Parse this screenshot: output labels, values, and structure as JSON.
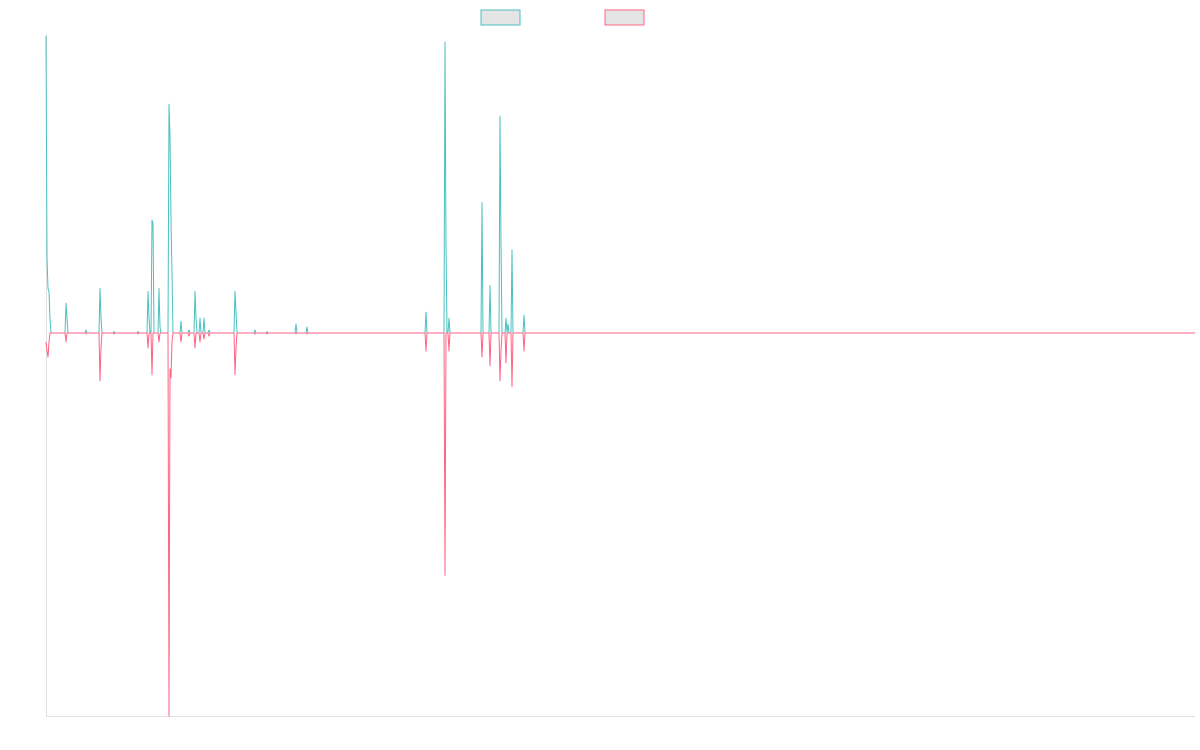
{
  "chart_data": {
    "type": "line",
    "title": "",
    "xlabel": "",
    "ylabel": "",
    "grid": false,
    "legend": "top-center",
    "x": [
      0,
      1,
      2,
      3,
      4,
      5,
      6,
      7,
      8,
      9,
      10,
      11,
      12,
      13,
      14,
      15,
      16,
      17,
      18,
      19,
      20,
      21,
      22,
      23,
      24,
      25,
      26,
      27,
      28,
      29,
      30,
      31,
      32,
      33,
      34,
      35,
      36,
      37,
      38,
      39,
      40,
      41,
      42,
      43,
      44,
      45,
      46,
      47,
      48,
      49,
      50,
      51,
      52,
      53,
      54,
      55,
      56,
      57,
      58,
      59,
      60,
      61,
      62,
      63,
      64,
      65,
      66,
      67,
      68,
      69,
      70,
      71,
      72,
      73,
      74,
      75,
      76,
      77,
      78,
      79,
      80,
      81,
      82,
      83,
      84,
      85,
      86,
      87,
      88,
      89,
      90,
      91,
      92,
      93,
      94,
      95,
      96,
      97,
      98,
      99,
      100,
      101,
      102,
      103,
      104,
      105,
      106,
      107,
      108,
      109,
      110,
      111,
      112,
      113,
      114,
      115,
      116,
      117,
      118,
      119,
      120,
      121,
      122,
      123,
      124,
      125,
      126,
      127,
      128,
      129,
      130,
      131,
      132,
      133,
      134,
      135,
      136,
      137,
      138,
      139,
      140,
      141,
      142,
      143,
      144,
      145,
      146,
      147,
      148,
      149,
      150,
      151,
      152,
      153,
      154,
      155,
      156,
      157,
      158,
      159,
      160,
      161,
      162,
      163,
      164,
      165,
      166,
      167,
      168,
      169,
      170,
      171,
      172,
      173,
      174,
      175,
      176,
      177,
      178,
      179,
      180,
      181,
      182,
      183,
      184,
      185,
      186,
      187,
      188,
      189,
      190,
      191,
      192,
      193,
      194,
      195,
      196,
      197,
      198,
      199,
      200,
      201,
      202,
      203,
      204,
      205,
      206,
      207,
      208,
      209,
      210,
      211,
      212,
      213,
      214,
      215,
      216,
      217,
      218,
      219,
      220,
      221,
      222,
      223,
      224,
      225,
      226,
      227,
      228,
      229,
      230,
      231,
      232,
      233,
      234,
      235,
      236,
      237,
      238,
      239,
      240,
      241,
      242,
      243,
      244,
      245,
      246,
      247,
      248,
      249,
      250,
      251,
      252,
      253,
      254,
      255,
      256,
      257,
      258,
      259,
      260,
      261,
      262,
      263,
      264,
      265,
      266,
      267,
      268,
      269,
      270,
      271,
      272,
      273,
      274,
      275,
      276,
      277,
      278,
      279,
      280,
      281,
      282,
      283,
      284,
      285,
      286,
      287,
      288,
      289,
      290,
      291,
      292,
      293,
      294,
      295,
      296,
      297,
      298,
      299,
      300,
      301,
      302,
      303,
      304,
      305,
      306,
      307,
      308,
      309,
      310,
      311,
      312,
      313,
      314,
      315,
      316,
      317,
      318,
      319,
      320,
      321,
      322,
      323,
      324,
      325,
      326,
      327,
      328,
      329,
      330,
      331,
      332,
      333,
      334,
      335,
      336,
      337,
      338,
      339,
      340,
      341,
      342,
      343,
      344,
      345,
      346,
      347,
      348,
      349,
      350,
      351,
      352,
      353,
      354,
      355,
      356,
      357,
      358,
      359,
      360,
      361,
      362,
      363,
      364,
      365,
      366,
      367,
      368,
      369,
      370,
      371,
      372,
      373,
      374,
      375,
      376,
      377,
      378,
      379,
      380,
      381,
      382,
      383,
      384,
      385,
      386,
      387,
      388,
      389,
      390,
      391,
      392,
      393,
      394,
      395,
      396,
      397,
      398,
      399,
      400,
      401,
      402,
      403,
      404,
      405,
      406,
      407,
      408,
      409,
      410,
      411,
      412,
      413,
      414,
      415,
      416,
      417,
      418,
      419,
      420,
      421,
      422,
      423,
      424,
      425,
      426,
      427,
      428,
      429,
      430,
      431,
      432,
      433,
      434,
      435,
      436,
      437,
      438,
      439,
      440,
      441,
      442,
      443,
      444,
      445,
      446,
      447,
      448,
      449,
      450,
      451,
      452,
      453,
      454,
      455,
      456,
      457,
      458,
      459,
      460,
      461,
      462,
      463,
      464,
      465,
      466,
      467,
      468,
      469,
      470,
      471,
      472,
      473,
      474,
      475,
      476,
      477,
      478,
      479,
      480,
      481,
      482,
      483,
      484,
      485,
      486,
      487,
      488,
      489,
      490,
      491,
      492,
      493,
      494,
      495,
      496,
      497,
      498,
      499,
      500,
      501,
      502,
      503,
      504,
      505,
      506,
      507,
      508,
      509,
      510,
      511,
      512,
      513,
      514,
      515,
      516,
      517,
      518,
      519,
      520,
      521,
      522,
      523,
      524,
      525,
      526,
      527,
      528,
      529,
      530,
      531,
      532,
      533,
      534,
      535,
      536,
      537,
      538,
      539,
      540,
      541,
      542,
      543,
      544,
      545,
      546,
      547,
      548,
      549,
      550,
      551,
      552,
      553,
      554,
      555,
      556,
      557,
      558,
      559,
      560,
      561,
      562,
      563,
      564,
      565,
      566,
      567,
      568,
      569,
      570,
      571,
      572,
      573,
      574,
      575,
      576,
      577,
      578,
      579,
      580,
      581,
      582,
      583,
      584,
      585,
      586,
      587,
      588,
      589,
      590,
      591,
      592,
      593,
      594,
      595,
      596,
      597,
      598,
      599,
      600,
      601,
      602,
      603,
      604,
      605,
      606,
      607,
      608,
      609,
      610,
      611,
      612,
      613,
      614,
      615,
      616,
      617,
      618,
      619,
      620,
      621,
      622,
      623,
      624,
      625,
      626,
      627,
      628,
      629,
      630,
      631,
      632,
      633,
      634,
      635,
      636,
      637,
      638,
      639,
      640,
      641,
      642,
      643,
      644,
      645,
      646,
      647,
      648,
      649,
      650,
      651,
      652,
      653,
      654,
      655,
      656,
      657,
      658,
      659,
      660,
      661,
      662,
      663,
      664,
      665,
      666,
      667,
      668,
      669,
      670,
      671,
      672,
      673,
      674,
      675,
      676,
      677,
      678,
      679,
      680,
      681,
      682,
      683,
      684,
      685,
      686,
      687,
      688,
      689,
      690,
      691,
      692,
      693,
      694,
      695,
      696,
      697,
      698,
      699,
      700,
      701,
      702,
      703,
      704,
      705,
      706,
      707,
      708,
      709,
      710,
      711,
      712,
      713,
      714,
      715,
      716,
      717,
      718,
      719,
      720,
      721,
      722,
      723,
      724,
      725,
      726,
      727,
      728,
      729,
      730,
      731,
      732,
      733,
      734,
      735,
      736,
      737,
      738,
      739,
      740,
      741,
      742,
      743,
      744,
      745,
      746,
      747,
      748,
      749,
      750,
      751,
      752,
      753,
      754,
      755,
      756,
      757,
      758,
      759,
      760,
      761,
      762,
      763,
      764,
      765,
      766,
      767,
      768,
      769,
      770,
      771,
      772,
      773,
      774,
      775,
      776,
      777,
      778,
      779,
      780,
      781,
      782,
      783,
      784,
      785,
      786,
      787,
      788,
      789,
      790,
      791,
      792,
      793,
      794,
      795,
      796,
      797,
      798,
      799,
      800,
      801,
      802,
      803,
      804,
      805,
      806,
      807,
      808,
      809,
      810,
      811,
      812,
      813,
      814,
      815,
      816,
      817,
      818,
      819,
      820,
      821,
      822,
      823,
      824,
      825,
      826,
      827,
      828,
      829,
      830,
      831,
      832,
      833,
      834,
      835,
      836,
      837,
      838,
      839,
      840,
      841,
      842,
      843,
      844,
      845,
      846,
      847,
      848,
      849,
      850,
      851,
      852,
      853,
      854,
      855,
      856,
      857,
      858,
      859,
      860,
      861,
      862,
      863,
      864,
      865,
      866,
      867,
      868,
      869,
      870,
      871,
      872,
      873,
      874,
      875,
      876,
      877,
      878,
      879,
      880,
      881,
      882,
      883,
      884,
      885,
      886,
      887,
      888,
      889,
      890,
      891,
      892,
      893,
      894,
      895,
      896,
      897,
      898,
      899,
      900,
      901,
      902,
      903,
      904,
      905,
      906,
      907,
      908,
      909,
      910,
      911,
      912,
      913,
      914,
      915,
      916,
      917,
      918,
      919,
      920,
      921,
      922,
      923,
      924,
      925,
      926,
      927,
      928,
      929,
      930,
      931,
      932,
      933,
      934,
      935,
      936,
      937,
      938,
      939,
      940,
      941,
      942,
      943,
      944,
      945,
      946,
      947,
      948,
      949,
      950,
      951,
      952,
      953,
      954,
      955,
      956,
      957,
      958,
      959,
      960,
      961,
      962,
      963,
      964,
      965,
      966,
      967,
      968,
      969,
      970,
      971,
      972,
      973,
      974,
      975,
      976,
      977,
      978,
      979,
      980,
      981,
      982,
      983,
      984,
      985,
      986,
      987,
      988,
      989,
      990,
      991,
      992,
      993,
      994,
      995,
      996,
      997,
      998,
      999,
      1000,
      1001,
      1002,
      1003,
      1004,
      1005,
      1006,
      1007,
      1008,
      1009,
      1010,
      1011,
      1012,
      1013,
      1014,
      1015,
      1016,
      1017,
      1018,
      1019,
      1020,
      1021,
      1022,
      1023,
      1024,
      1025,
      1026,
      1027,
      1028,
      1029,
      1030,
      1031,
      1032,
      1033,
      1034,
      1035,
      1036,
      1037,
      1038,
      1039,
      1040,
      1041,
      1042,
      1043,
      1044,
      1045,
      1046,
      1047,
      1048,
      1049,
      1050,
      1051,
      1052,
      1053,
      1054,
      1055,
      1056,
      1057,
      1058,
      1059,
      1060,
      1061,
      1062,
      1063,
      1064,
      1065,
      1066,
      1067,
      1068,
      1069,
      1070,
      1071,
      1072,
      1073,
      1074,
      1075,
      1076,
      1077,
      1078,
      1079,
      1080,
      1081,
      1082,
      1083,
      1084,
      1085,
      1086,
      1087,
      1088,
      1089,
      1090,
      1091,
      1092,
      1093,
      1094,
      1095,
      1096,
      1097,
      1098,
      1099,
      1100,
      1101,
      1102,
      1103,
      1104,
      1105,
      1106,
      1107,
      1108,
      1109,
      1110,
      1111,
      1112,
      1113,
      1114,
      1115,
      1116,
      1117,
      1118,
      1119,
      1120,
      1121,
      1122,
      1123,
      1124,
      1125,
      1126,
      1127,
      1128,
      1129,
      1130,
      1131,
      1132,
      1133,
      1134,
      1135,
      1136,
      1137,
      1138,
      1139,
      1140,
      1141,
      1142,
      1143,
      1144,
      1145,
      1146,
      1147,
      1148,
      1149
    ],
    "xlim": [
      0,
      1149
    ],
    "ylim": [
      -1.28,
      1.0
    ],
    "series": [
      {
        "color": "#4bc0c0",
        "peaks": [
          [
            0,
            1.0
          ],
          [
            1,
            0.25
          ],
          [
            2,
            0.15
          ],
          [
            3,
            0.14
          ],
          [
            4,
            0.05
          ],
          [
            20,
            0.1
          ],
          [
            21,
            0.05
          ],
          [
            40,
            0.01
          ],
          [
            54,
            0.15
          ],
          [
            55,
            0.05
          ],
          [
            68,
            0.005
          ],
          [
            92,
            0.005
          ],
          [
            102,
            0.14
          ],
          [
            103,
            0.05
          ],
          [
            106,
            0.38
          ],
          [
            107,
            0.37
          ],
          [
            113,
            0.15
          ],
          [
            114,
            0.02
          ],
          [
            123,
            0.77
          ],
          [
            124,
            0.66
          ],
          [
            125,
            0.38
          ],
          [
            126,
            0.2
          ],
          [
            135,
            0.04
          ],
          [
            143,
            0.01
          ],
          [
            149,
            0.14
          ],
          [
            150,
            0.05
          ],
          [
            154,
            0.05
          ],
          [
            158,
            0.05
          ],
          [
            163,
            0.01
          ],
          [
            189,
            0.14
          ],
          [
            190,
            0.07
          ],
          [
            209,
            0.01
          ],
          [
            221,
            0.005
          ],
          [
            250,
            0.03
          ],
          [
            261,
            0.02
          ],
          [
            380,
            0.07
          ],
          [
            399,
            0.98
          ],
          [
            400,
            0.3
          ],
          [
            403,
            0.05
          ],
          [
            436,
            0.44
          ],
          [
            444,
            0.16
          ],
          [
            454,
            0.73
          ],
          [
            455,
            0.3
          ],
          [
            460,
            0.05
          ],
          [
            462,
            0.03
          ],
          [
            466,
            0.28
          ],
          [
            478,
            0.06
          ]
        ]
      },
      {
        "color": "#ff6384",
        "peaks": [
          [
            0,
            -0.03
          ],
          [
            1,
            -0.06
          ],
          [
            2,
            -0.08
          ],
          [
            3,
            -0.03
          ],
          [
            20,
            -0.03
          ],
          [
            40,
            -0.003
          ],
          [
            54,
            -0.16
          ],
          [
            55,
            -0.05
          ],
          [
            68,
            -0.003
          ],
          [
            92,
            -0.003
          ],
          [
            102,
            -0.05
          ],
          [
            106,
            -0.14
          ],
          [
            113,
            -0.03
          ],
          [
            123,
            -1.28
          ],
          [
            124,
            -0.12
          ],
          [
            125,
            -0.15
          ],
          [
            126,
            -0.03
          ],
          [
            135,
            -0.03
          ],
          [
            143,
            -0.01
          ],
          [
            149,
            -0.05
          ],
          [
            154,
            -0.03
          ],
          [
            158,
            -0.02
          ],
          [
            163,
            -0.01
          ],
          [
            189,
            -0.14
          ],
          [
            190,
            -0.05
          ],
          [
            209,
            -0.003
          ],
          [
            221,
            -0.003
          ],
          [
            250,
            -0.003
          ],
          [
            261,
            -0.003
          ],
          [
            380,
            -0.06
          ],
          [
            399,
            -0.81
          ],
          [
            403,
            -0.06
          ],
          [
            436,
            -0.08
          ],
          [
            444,
            -0.11
          ],
          [
            454,
            -0.16
          ],
          [
            455,
            -0.06
          ],
          [
            460,
            -0.1
          ],
          [
            466,
            -0.18
          ],
          [
            478,
            -0.06
          ]
        ]
      }
    ]
  }
}
